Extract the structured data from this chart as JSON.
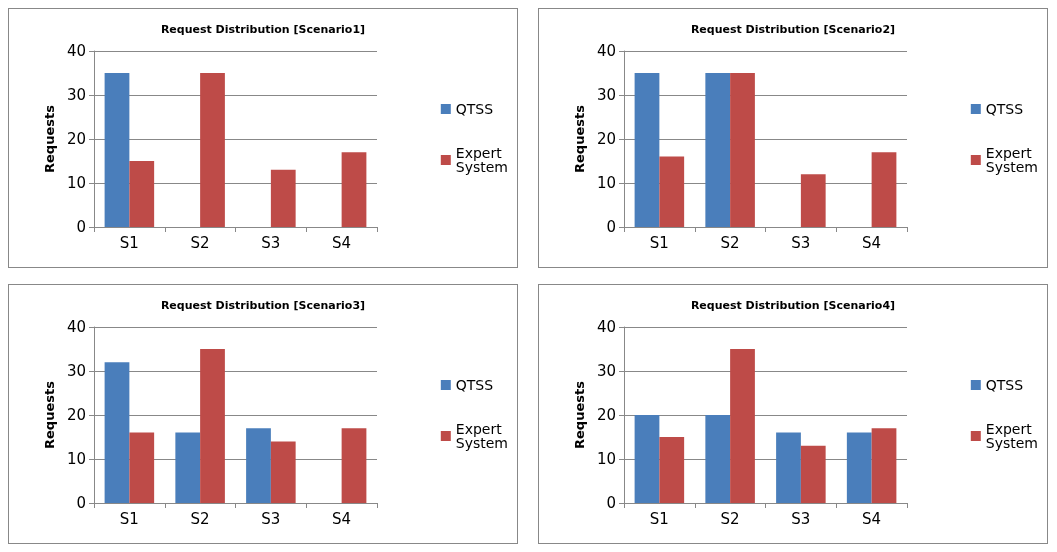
{
  "chart_data": [
    {
      "type": "bar",
      "title": "Request Distribution [Scenario1]",
      "ylabel": "Requests",
      "categories": [
        "S1",
        "S2",
        "S3",
        "S4"
      ],
      "series": [
        {
          "name": "QTSS",
          "color": "#4a7ebb",
          "values": [
            35,
            0,
            0,
            0
          ]
        },
        {
          "name": "Expert System",
          "color": "#be4b48",
          "values": [
            15,
            35,
            13,
            17
          ]
        }
      ],
      "ylim": [
        0,
        40
      ],
      "yticks": [
        0,
        10,
        20,
        30,
        40
      ],
      "grid": "y",
      "legend": "right"
    },
    {
      "type": "bar",
      "title": "Request Distribution [Scenario2]",
      "ylabel": "Requests",
      "categories": [
        "S1",
        "S2",
        "S3",
        "S4"
      ],
      "series": [
        {
          "name": "QTSS",
          "color": "#4a7ebb",
          "values": [
            35,
            35,
            0,
            0
          ]
        },
        {
          "name": "Expert System",
          "color": "#be4b48",
          "values": [
            16,
            35,
            12,
            17
          ]
        }
      ],
      "ylim": [
        0,
        40
      ],
      "yticks": [
        0,
        10,
        20,
        30,
        40
      ],
      "grid": "y",
      "legend": "right"
    },
    {
      "type": "bar",
      "title": "Request Distribution [Scenario3]",
      "ylabel": "Requests",
      "categories": [
        "S1",
        "S2",
        "S3",
        "S4"
      ],
      "series": [
        {
          "name": "QTSS",
          "color": "#4a7ebb",
          "values": [
            32,
            16,
            17,
            0
          ]
        },
        {
          "name": "Expert System",
          "color": "#be4b48",
          "values": [
            16,
            35,
            14,
            17
          ]
        }
      ],
      "ylim": [
        0,
        40
      ],
      "yticks": [
        0,
        10,
        20,
        30,
        40
      ],
      "grid": "y",
      "legend": "right"
    },
    {
      "type": "bar",
      "title": "Request Distribution [Scenario4]",
      "ylabel": "Requests",
      "categories": [
        "S1",
        "S2",
        "S3",
        "S4"
      ],
      "series": [
        {
          "name": "QTSS",
          "color": "#4a7ebb",
          "values": [
            20,
            20,
            16,
            16
          ]
        },
        {
          "name": "Expert System",
          "color": "#be4b48",
          "values": [
            15,
            35,
            13,
            17
          ]
        }
      ],
      "ylim": [
        0,
        40
      ],
      "yticks": [
        0,
        10,
        20,
        30,
        40
      ],
      "grid": "y",
      "legend": "right"
    }
  ]
}
